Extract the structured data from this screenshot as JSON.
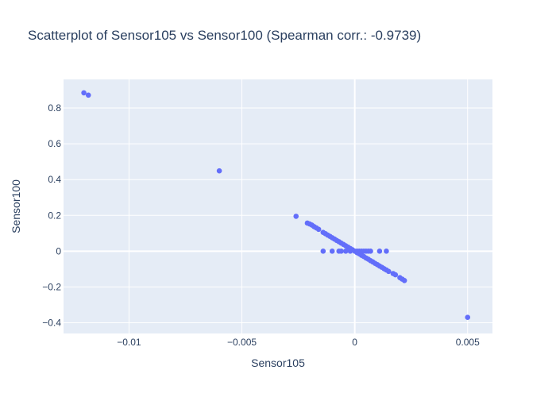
{
  "chart_data": {
    "type": "scatter",
    "title": "Scatterplot of Sensor105 vs Sensor100 (Spearman corr.: -0.9739)",
    "xlabel": "Sensor105",
    "ylabel": "Sensor100",
    "xlim": [
      -0.0129,
      0.0061
    ],
    "ylim": [
      -0.46,
      0.96
    ],
    "x_ticks": [
      {
        "value": -0.01,
        "label": "−0.01"
      },
      {
        "value": -0.005,
        "label": "−0.005"
      },
      {
        "value": 0,
        "label": "0"
      },
      {
        "value": 0.005,
        "label": "0.005"
      }
    ],
    "y_ticks": [
      {
        "value": -0.4,
        "label": "−0.4"
      },
      {
        "value": -0.2,
        "label": "−0.2"
      },
      {
        "value": 0,
        "label": "0"
      },
      {
        "value": 0.2,
        "label": "0.2"
      },
      {
        "value": 0.4,
        "label": "0.4"
      },
      {
        "value": 0.6,
        "label": "0.6"
      },
      {
        "value": 0.8,
        "label": "0.8"
      }
    ],
    "grid": true,
    "colors": {
      "marker": "#636efa",
      "plot_bg": "#e5ecf6",
      "grid": "#ffffff",
      "text": "#2a3f5f"
    },
    "points": [
      {
        "x": -0.012,
        "y": 0.885
      },
      {
        "x": -0.0118,
        "y": 0.872
      },
      {
        "x": -0.006,
        "y": 0.449
      },
      {
        "x": -0.0026,
        "y": 0.195
      },
      {
        "x": 0.005,
        "y": -0.37
      },
      {
        "x": -0.0021,
        "y": 0.157
      },
      {
        "x": -0.002,
        "y": 0.152
      },
      {
        "x": -0.0019,
        "y": 0.146
      },
      {
        "x": -0.0018,
        "y": 0.137
      },
      {
        "x": -0.0017,
        "y": 0.13
      },
      {
        "x": -0.0016,
        "y": 0.122
      },
      {
        "x": -0.0014,
        "y": 0.105
      },
      {
        "x": -0.0013,
        "y": 0.098
      },
      {
        "x": -0.0012,
        "y": 0.09
      },
      {
        "x": -0.0011,
        "y": 0.083
      },
      {
        "x": -0.001,
        "y": 0.075
      },
      {
        "x": -0.0009,
        "y": 0.068
      },
      {
        "x": -0.0008,
        "y": 0.06
      },
      {
        "x": -0.0007,
        "y": 0.053
      },
      {
        "x": -0.0006,
        "y": 0.045
      },
      {
        "x": -0.0005,
        "y": 0.038
      },
      {
        "x": -0.0004,
        "y": 0.03
      },
      {
        "x": -0.0003,
        "y": 0.023
      },
      {
        "x": -0.0002,
        "y": 0.015
      },
      {
        "x": -0.0001,
        "y": 0.008
      },
      {
        "x": 0.0,
        "y": 0.0
      },
      {
        "x": 0.0001,
        "y": -0.008
      },
      {
        "x": 0.0002,
        "y": -0.015
      },
      {
        "x": 0.0003,
        "y": -0.023
      },
      {
        "x": 0.0004,
        "y": -0.03
      },
      {
        "x": 0.0005,
        "y": -0.038
      },
      {
        "x": 0.0006,
        "y": -0.045
      },
      {
        "x": 0.0007,
        "y": -0.053
      },
      {
        "x": 0.0008,
        "y": -0.06
      },
      {
        "x": 0.0009,
        "y": -0.068
      },
      {
        "x": 0.001,
        "y": -0.075
      },
      {
        "x": 0.0011,
        "y": -0.083
      },
      {
        "x": 0.0012,
        "y": -0.09
      },
      {
        "x": 0.0013,
        "y": -0.098
      },
      {
        "x": 0.0014,
        "y": -0.105
      },
      {
        "x": 0.0015,
        "y": -0.113
      },
      {
        "x": 0.0017,
        "y": -0.125
      },
      {
        "x": 0.0018,
        "y": -0.132
      },
      {
        "x": 0.002,
        "y": -0.148
      },
      {
        "x": 0.0021,
        "y": -0.156
      },
      {
        "x": 0.0022,
        "y": -0.164
      },
      {
        "x": -0.0014,
        "y": 0.0
      },
      {
        "x": -0.001,
        "y": 0.0
      },
      {
        "x": -0.0007,
        "y": 0.0
      },
      {
        "x": -0.0006,
        "y": 0.0
      },
      {
        "x": -0.0004,
        "y": 0.0
      },
      {
        "x": -0.0002,
        "y": 0.0
      },
      {
        "x": 0.0001,
        "y": 0.0
      },
      {
        "x": 0.0002,
        "y": 0.0
      },
      {
        "x": 0.0003,
        "y": 0.0
      },
      {
        "x": 0.0004,
        "y": 0.0
      },
      {
        "x": 0.0005,
        "y": 0.0
      },
      {
        "x": 0.0006,
        "y": 0.0
      },
      {
        "x": 0.0007,
        "y": 0.0
      },
      {
        "x": 0.0011,
        "y": 0.0
      },
      {
        "x": 0.0014,
        "y": 0.0
      }
    ]
  }
}
